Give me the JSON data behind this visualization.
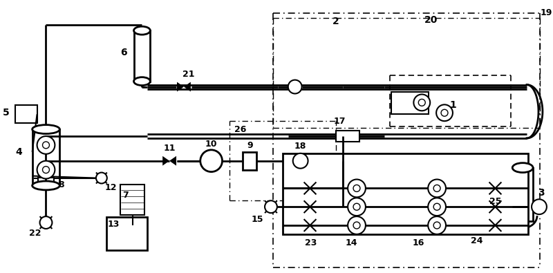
{
  "bg_color": "#ffffff",
  "lc": "#000000",
  "fig_w": 8.0,
  "fig_h": 3.95
}
